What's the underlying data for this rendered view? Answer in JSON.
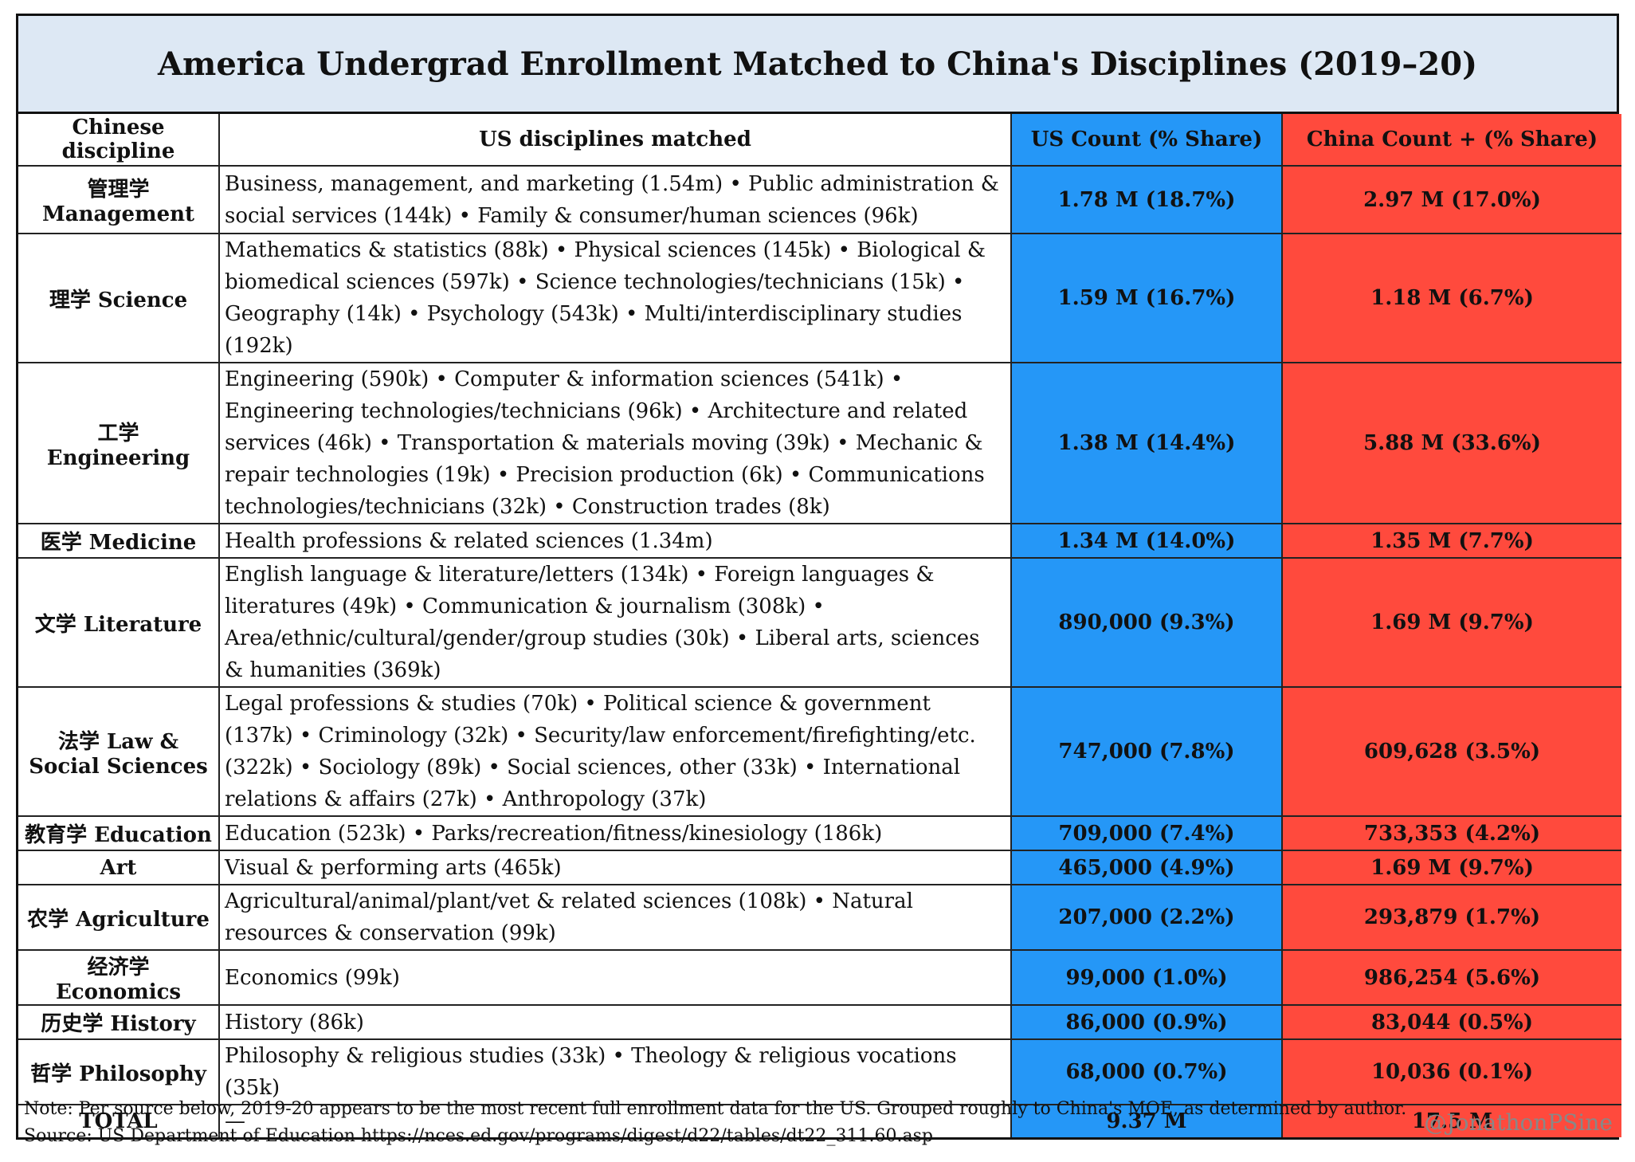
{
  "title": "America Undergrad Enrollment Matched to China's Disciplines (2019–20)",
  "chart_data": {
    "type": "table",
    "columns": [
      "Chinese discipline",
      "US disciplines matched",
      "US Count (% Share)",
      "China Count + (% Share)"
    ],
    "rows": [
      {
        "chinese_discipline": "管理学 Management",
        "us_matched": "Business, management, and marketing (1.54m) • Public administration & social services (144k) • Family & consumer/human sciences (96k)",
        "us_count": "1.78 M (18.7%)",
        "china_count": "2.97 M (17.0%)"
      },
      {
        "chinese_discipline": "理学 Science",
        "us_matched": "Mathematics & statistics (88k) • Physical sciences (145k) • Biological & biomedical sciences (597k) • Science technologies/technicians (15k) • Geography (14k) • Psychology (543k) • Multi/interdisciplinary studies (192k)",
        "us_count": "1.59 M (16.7%)",
        "china_count": "1.18 M (6.7%)"
      },
      {
        "chinese_discipline": "工学 Engineering",
        "us_matched": "Engineering (590k) • Computer & information sciences (541k) • Engineering technologies/technicians (96k) • Architecture and related services (46k) • Transportation & materials moving (39k) • Mechanic & repair technologies (19k) • Precision production (6k) • Communications technologies/technicians (32k) • Construction trades (8k)",
        "us_count": "1.38 M (14.4%)",
        "china_count": "5.88 M (33.6%)"
      },
      {
        "chinese_discipline": "医学 Medicine",
        "us_matched": "Health professions & related sciences (1.34m)",
        "us_count": "1.34 M (14.0%)",
        "china_count": "1.35 M (7.7%)"
      },
      {
        "chinese_discipline": "文学 Literature",
        "us_matched": "English language & literature/letters (134k) • Foreign languages & literatures (49k) • Communication & journalism (308k) • Area/ethnic/cultural/gender/group studies (30k) • Liberal arts, sciences & humanities (369k)",
        "us_count": "890,000 (9.3%)",
        "china_count": "1.69 M (9.7%)"
      },
      {
        "chinese_discipline": "法学 Law & Social Sciences",
        "us_matched": "Legal professions & studies (70k) • Political science & government (137k) • Criminology (32k) • Security/law enforcement/firefighting/etc. (322k) • Sociology (89k) • Social sciences, other (33k) • International relations & affairs (27k) • Anthropology (37k)",
        "us_count": "747,000 (7.8%)",
        "china_count": "609,628 (3.5%)"
      },
      {
        "chinese_discipline": "教育学 Education",
        "us_matched": "Education (523k) • Parks/recreation/fitness/kinesiology (186k)",
        "us_count": "709,000 (7.4%)",
        "china_count": "733,353 (4.2%)"
      },
      {
        "chinese_discipline": "Art",
        "us_matched": "Visual & performing arts (465k)",
        "us_count": "465,000 (4.9%)",
        "china_count": "1.69 M (9.7%)"
      },
      {
        "chinese_discipline": "农学 Agriculture",
        "us_matched": "Agricultural/animal/plant/vet & related sciences (108k) • Natural resources & conservation (99k)",
        "us_count": "207,000 (2.2%)",
        "china_count": "293,879 (1.7%)"
      },
      {
        "chinese_discipline": "经济学 Economics",
        "us_matched": "Economics (99k)",
        "us_count": "99,000 (1.0%)",
        "china_count": "986,254 (5.6%)"
      },
      {
        "chinese_discipline": "历史学 History",
        "us_matched": "History (86k)",
        "us_count": "86,000 (0.9%)",
        "china_count": "83,044 (0.5%)"
      },
      {
        "chinese_discipline": "哲学 Philosophy",
        "us_matched": "Philosophy & religious studies (33k) • Theology & religious vocations (35k)",
        "us_count": "68,000 (0.7%)",
        "china_count": "10,036 (0.1%)"
      }
    ],
    "total": {
      "label": "TOTAL",
      "us_matched": "—",
      "us_count": "9.37 M",
      "china_count": "17.5 M"
    },
    "colors": {
      "us": "#2597f7",
      "china": "#ff4a3d",
      "title_bg": "#dde8f4"
    }
  },
  "note_line1": "Note: Per source below, 2019-20 appears to be the most recent full enrollment data for the US. Grouped roughly to China's MOE, as determined by author.",
  "note_line2": "Source: US Department of Education https://nces.ed.gov/programs/digest/d22/tables/dt22_311.60.asp",
  "handle": "@JonathonPSine"
}
